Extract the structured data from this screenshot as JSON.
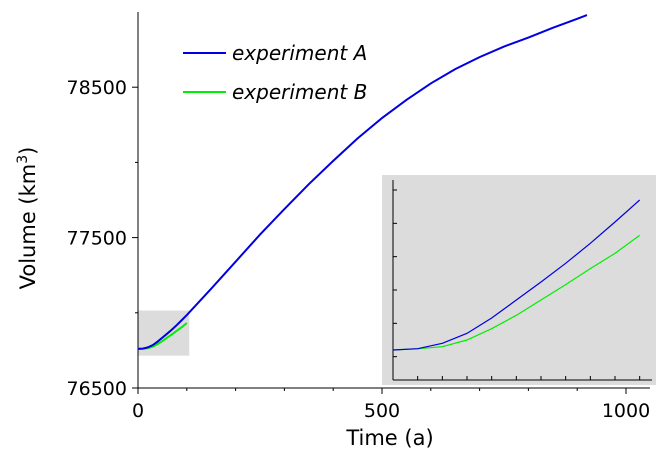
{
  "chart_data": {
    "type": "line",
    "xlabel": "Time (a)",
    "ylabel_main": "Volume (km",
    "ylabel_sup": "3",
    "ylabel_close": ")",
    "xlim": [
      0,
      1000
    ],
    "ylim": [
      76500,
      79000
    ],
    "xticks": [
      "0",
      "500",
      "1000"
    ],
    "yticks": [
      "76500",
      "77500",
      "78500"
    ],
    "legend_position": "top-left",
    "grid": false,
    "series": [
      {
        "name": "experiment A",
        "color": "#0000e0",
        "x": [
          0,
          10,
          20,
          30,
          40,
          50,
          60,
          70,
          80,
          90,
          100,
          150,
          200,
          250,
          300,
          350,
          400,
          450,
          500,
          550,
          600,
          650,
          700,
          750,
          800,
          850,
          900,
          920
        ],
        "y": [
          76760,
          76762,
          76770,
          76785,
          76808,
          76835,
          76862,
          76890,
          76920,
          76952,
          76985,
          77160,
          77340,
          77520,
          77690,
          77855,
          78010,
          78160,
          78295,
          78415,
          78525,
          78620,
          78700,
          78770,
          78830,
          78895,
          78955,
          78980
        ]
      },
      {
        "name": "experiment B",
        "color": "#00ee00",
        "x": [
          0,
          10,
          20,
          30,
          40,
          50,
          60,
          70,
          80,
          90,
          100
        ],
        "y": [
          76760,
          76762,
          76765,
          76775,
          76792,
          76812,
          76835,
          76858,
          76882,
          76905,
          76932
        ]
      }
    ],
    "inset": {
      "background": "#dcdcdc",
      "source_xlim": [
        0,
        105
      ],
      "source_ylim": [
        76715,
        77015
      ]
    }
  }
}
